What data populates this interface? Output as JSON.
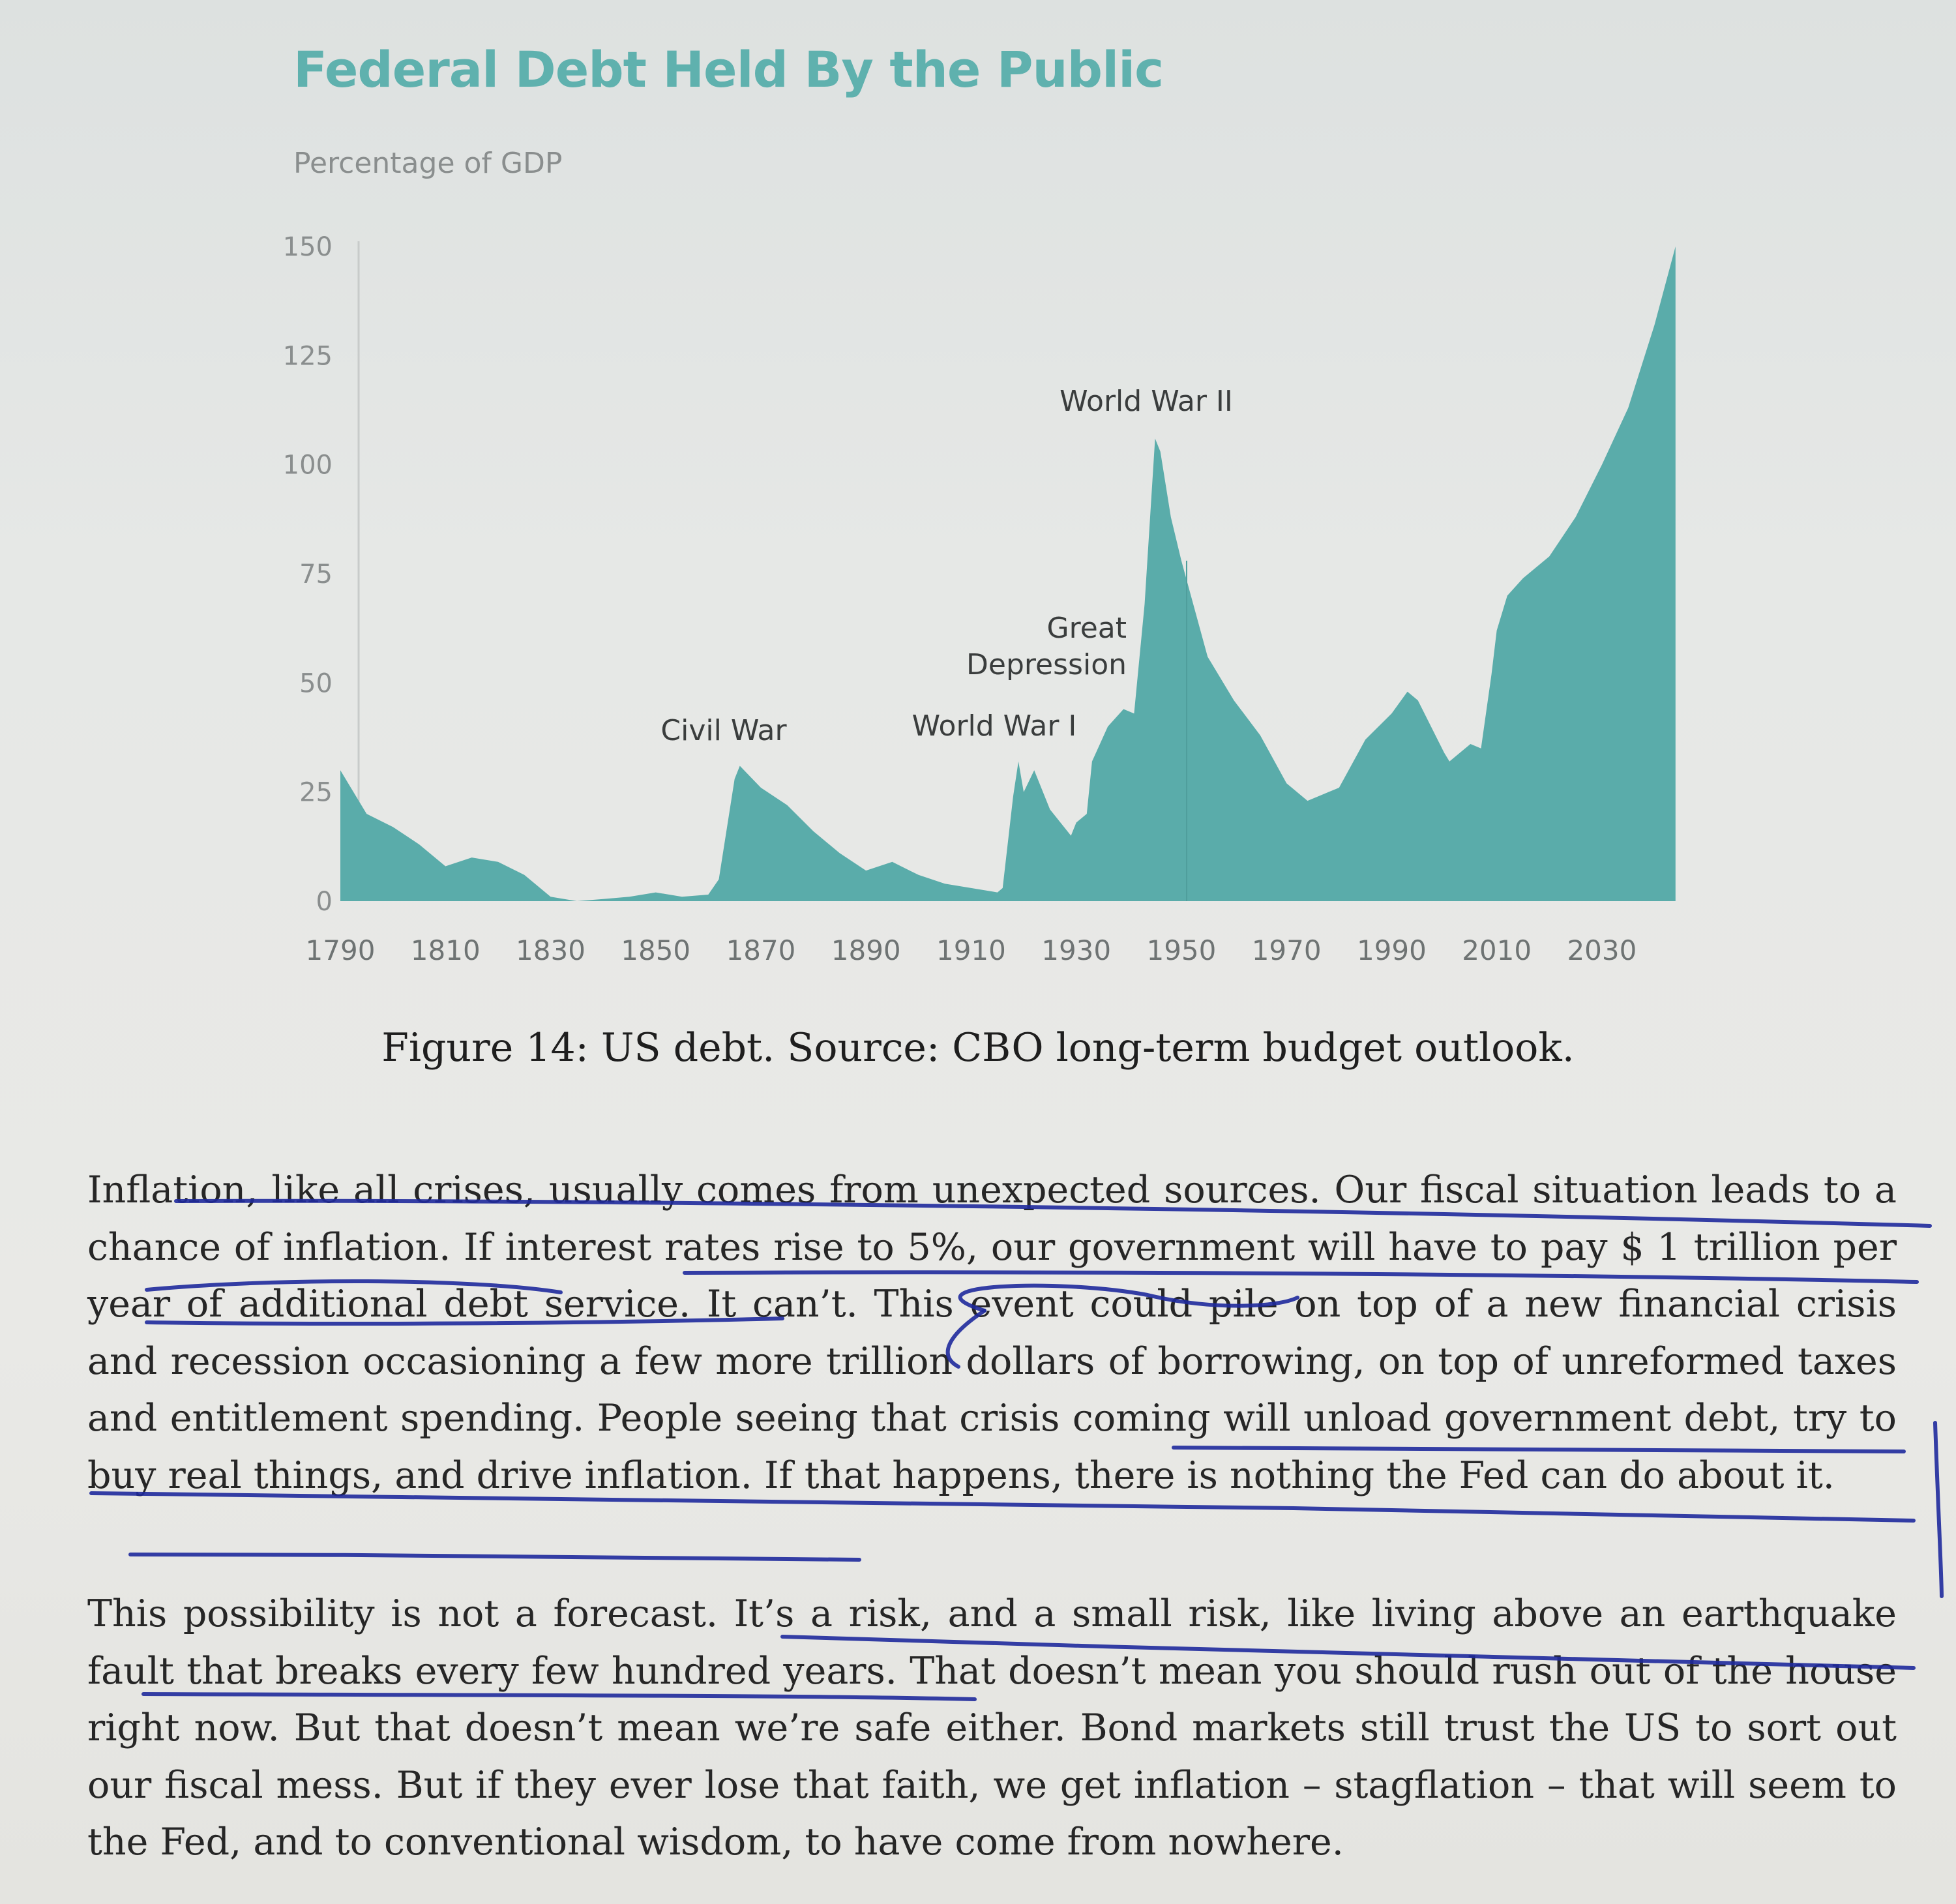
{
  "chart_data": {
    "type": "area",
    "title": "Federal Debt Held By the Public",
    "ylabel": "Percentage of GDP",
    "xlabel": "",
    "xlim": [
      1790,
      2048
    ],
    "ylim": [
      0,
      150
    ],
    "xticks": [
      "1790",
      "1810",
      "1830",
      "1850",
      "1870",
      "1890",
      "1910",
      "1930",
      "1950",
      "1970",
      "1990",
      "2010",
      "2030"
    ],
    "yticks": [
      "0",
      "25",
      "50",
      "75",
      "100",
      "125",
      "150"
    ],
    "grid": false,
    "color": "#5aacaa",
    "series": [
      {
        "x": [
          1790,
          1792,
          1795,
          1800,
          1805,
          1810,
          1815,
          1820,
          1825,
          1830,
          1835,
          1840,
          1845,
          1850,
          1855,
          1860,
          1862,
          1865,
          1866,
          1870,
          1875,
          1880,
          1885,
          1890,
          1895,
          1900,
          1905,
          1910,
          1915,
          1916,
          1918,
          1919,
          1920,
          1922,
          1925,
          1929,
          1930,
          1932,
          1933,
          1936,
          1939,
          1941,
          1943,
          1945,
          1946,
          1948,
          1950,
          1955,
          1960,
          1965,
          1970,
          1974,
          1980,
          1985,
          1990,
          1993,
          1995,
          2000,
          2001,
          2005,
          2007,
          2009,
          2010,
          2012,
          2015,
          2020,
          2025,
          2030,
          2035,
          2040,
          2044
        ],
        "y": [
          30,
          26,
          20,
          17,
          13,
          8,
          10,
          9,
          6,
          1,
          0,
          0.5,
          1,
          2,
          1,
          1.5,
          5,
          28,
          31,
          26,
          22,
          16,
          11,
          7,
          9,
          6,
          4,
          3,
          2,
          3,
          24,
          32,
          25,
          30,
          21,
          15,
          18,
          20,
          32,
          40,
          44,
          43,
          68,
          106,
          103,
          88,
          78,
          56,
          46,
          38,
          27,
          23,
          26,
          37,
          43,
          48,
          46,
          34,
          32,
          36,
          35,
          52,
          62,
          70,
          74,
          79,
          88,
          100,
          113,
          132,
          150
        ]
      }
    ],
    "annotations": [
      "Civil War",
      "World War I",
      "Great Depression",
      "World War II"
    ],
    "caption": "Figure 14: US debt. Source: CBO long-term budget outlook."
  },
  "text": {
    "paragraph_1": "Inflation, like all crises, usually comes from unexpected sources. Our fiscal situation leads to a chance of inflation. If interest rates rise to 5%, our government will have to pay $ 1 trillion per year of additional debt service. It can’t. This event could pile on top of a new financial crisis and recession occasioning a few more trillion dollars of borrowing, on top of unreformed taxes and entitlement spending. People seeing that crisis coming will unload government debt, try to buy real things, and drive inflation. If that happens, there is nothing the Fed can do about it.",
    "paragraph_2": "This possibility is not a forecast. It’s a risk, and a small risk, like living above an earthquake fault that breaks every few hundred years. That doesn’t mean you should rush out of the house right now. But that doesn’t mean we’re safe either. Bond markets still trust the US to sort out our fiscal mess. But if they ever lose that faith, we get inflation – stagflation – that will seem to the Fed, and to conventional wisdom, to have come from nowhere."
  },
  "ink_color": "#1f2a9c"
}
